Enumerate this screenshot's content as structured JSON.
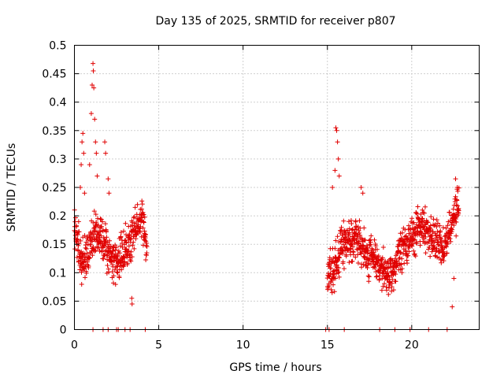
{
  "chart_data": {
    "type": "scatter",
    "title": "Day 135 of 2025, SRMTID for receiver p807",
    "xlabel": "GPS time / hours",
    "ylabel": "SRMTID / TECUs",
    "xlim": [
      0,
      24
    ],
    "ylim": [
      0,
      0.5
    ],
    "x_ticks": [
      0,
      5,
      10,
      15,
      20
    ],
    "x_tick_labels": [
      "0",
      "5",
      "10",
      "15",
      "20"
    ],
    "y_ticks": [
      0,
      0.05,
      0.1,
      0.15,
      0.2,
      0.25,
      0.3,
      0.35,
      0.4,
      0.45,
      0.5
    ],
    "y_tick_labels": [
      "0",
      "0.05",
      "0.1",
      "0.15",
      "0.2",
      "0.25",
      "0.3",
      "0.35",
      "0.4",
      "0.45",
      "0.5"
    ],
    "grid": true,
    "marker": "plus",
    "color": "#e00000",
    "segments": [
      {
        "start": 0.0,
        "end": 4.3,
        "step": 0.01,
        "anchors": [
          [
            0.0,
            0.18
          ],
          [
            0.3,
            0.13
          ],
          [
            0.5,
            0.12
          ],
          [
            0.8,
            0.14
          ],
          [
            1.2,
            0.17
          ],
          [
            1.6,
            0.16
          ],
          [
            2.0,
            0.13
          ],
          [
            2.4,
            0.12
          ],
          [
            2.8,
            0.13
          ],
          [
            3.3,
            0.15
          ],
          [
            3.7,
            0.18
          ],
          [
            4.0,
            0.2
          ],
          [
            4.25,
            0.15
          ]
        ],
        "spread": 0.055
      },
      {
        "start": 15.0,
        "end": 22.8,
        "step": 0.01,
        "anchors": [
          [
            15.0,
            0.1
          ],
          [
            15.4,
            0.1
          ],
          [
            15.8,
            0.15
          ],
          [
            16.3,
            0.16
          ],
          [
            16.8,
            0.16
          ],
          [
            17.3,
            0.13
          ],
          [
            17.8,
            0.13
          ],
          [
            18.3,
            0.1
          ],
          [
            18.8,
            0.09
          ],
          [
            19.2,
            0.13
          ],
          [
            19.6,
            0.15
          ],
          [
            20.0,
            0.16
          ],
          [
            20.4,
            0.18
          ],
          [
            20.8,
            0.18
          ],
          [
            21.3,
            0.16
          ],
          [
            21.8,
            0.14
          ],
          [
            22.2,
            0.17
          ],
          [
            22.5,
            0.2
          ],
          [
            22.8,
            0.22
          ]
        ],
        "spread": 0.05
      }
    ],
    "peaks": [
      {
        "x": 0.25,
        "y": 0.19
      },
      {
        "x": 0.35,
        "y": 0.25
      },
      {
        "x": 0.4,
        "y": 0.29
      },
      {
        "x": 0.45,
        "y": 0.33
      },
      {
        "x": 0.5,
        "y": 0.345
      },
      {
        "x": 0.55,
        "y": 0.31
      },
      {
        "x": 0.6,
        "y": 0.24
      },
      {
        "x": 0.9,
        "y": 0.29
      },
      {
        "x": 1.0,
        "y": 0.38
      },
      {
        "x": 1.05,
        "y": 0.43
      },
      {
        "x": 1.1,
        "y": 0.468
      },
      {
        "x": 1.12,
        "y": 0.455
      },
      {
        "x": 1.15,
        "y": 0.425
      },
      {
        "x": 1.2,
        "y": 0.37
      },
      {
        "x": 1.25,
        "y": 0.33
      },
      {
        "x": 1.3,
        "y": 0.31
      },
      {
        "x": 1.35,
        "y": 0.27
      },
      {
        "x": 1.8,
        "y": 0.33
      },
      {
        "x": 1.85,
        "y": 0.31
      },
      {
        "x": 2.0,
        "y": 0.265
      },
      {
        "x": 2.05,
        "y": 0.24
      },
      {
        "x": 3.4,
        "y": 0.055
      },
      {
        "x": 3.42,
        "y": 0.045
      },
      {
        "x": 15.3,
        "y": 0.25
      },
      {
        "x": 15.45,
        "y": 0.28
      },
      {
        "x": 15.5,
        "y": 0.355
      },
      {
        "x": 15.55,
        "y": 0.35
      },
      {
        "x": 15.6,
        "y": 0.33
      },
      {
        "x": 15.65,
        "y": 0.3
      },
      {
        "x": 15.7,
        "y": 0.27
      },
      {
        "x": 17.0,
        "y": 0.25
      },
      {
        "x": 17.1,
        "y": 0.24
      },
      {
        "x": 22.4,
        "y": 0.04
      },
      {
        "x": 22.5,
        "y": 0.09
      },
      {
        "x": 22.6,
        "y": 0.265
      },
      {
        "x": 22.7,
        "y": 0.25
      }
    ],
    "zeros": [
      1.1,
      1.7,
      2.0,
      2.5,
      2.6,
      3.0,
      3.3,
      4.2,
      14.9,
      15.1,
      16.0,
      18.1,
      19.0,
      19.9,
      21.0,
      22.1
    ]
  }
}
